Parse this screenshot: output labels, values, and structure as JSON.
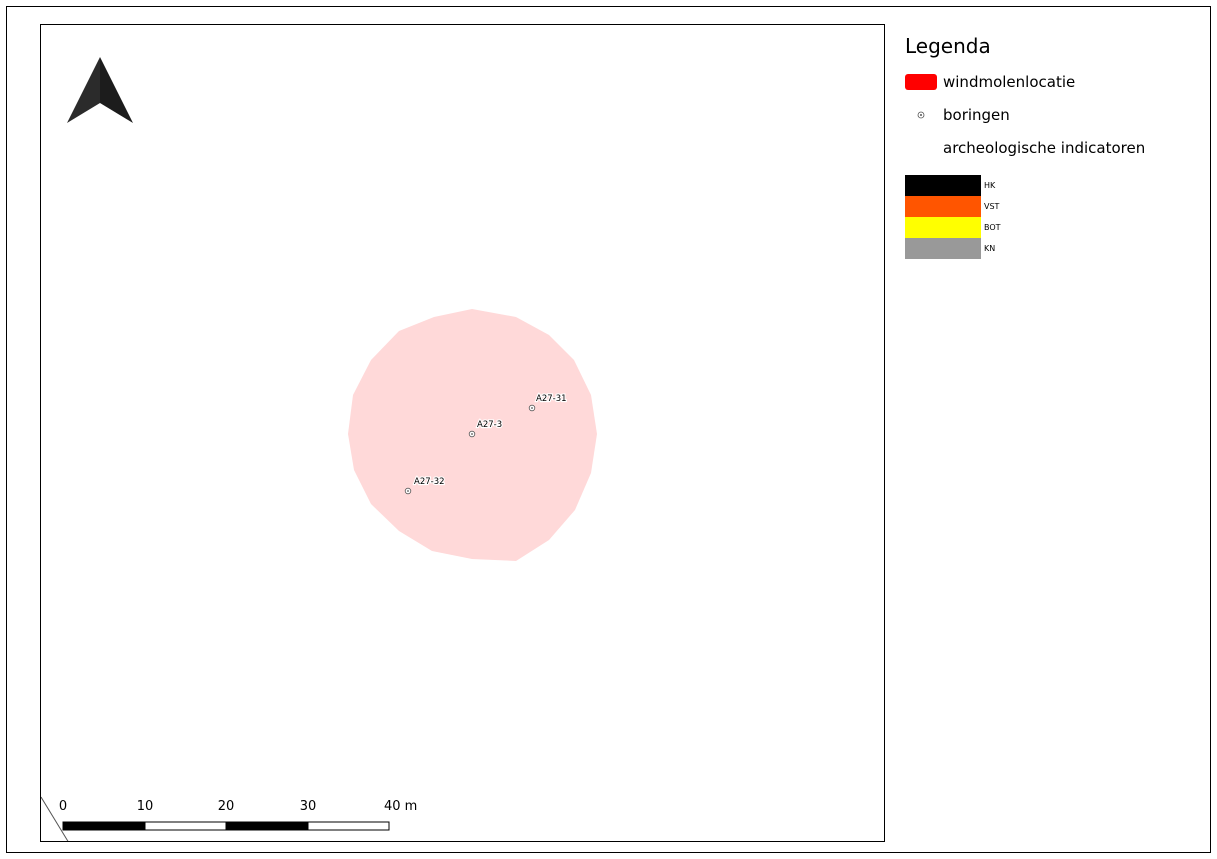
{
  "legend": {
    "title": "Legenda",
    "windmill_label": "windmolenlocatie",
    "boring_label": "boringen",
    "indicators_label": "archeologische indicatoren",
    "indicators": [
      {
        "code": "HK",
        "color": "#000000"
      },
      {
        "code": "VST",
        "color": "#ff5500"
      },
      {
        "code": "BOT",
        "color": "#ffff00"
      },
      {
        "code": "KN",
        "color": "#999999"
      }
    ]
  },
  "borings": [
    {
      "id": "A27-31"
    },
    {
      "id": "A27-3"
    },
    {
      "id": "A27-32"
    }
  ],
  "scale_bar": {
    "labels": [
      "0",
      "10",
      "20",
      "30",
      "40 m"
    ]
  },
  "colors": {
    "windmill_fill": "#ffd9d9",
    "windmill_legend": "#ff0000",
    "north_arrow": "#2b2b2b"
  }
}
